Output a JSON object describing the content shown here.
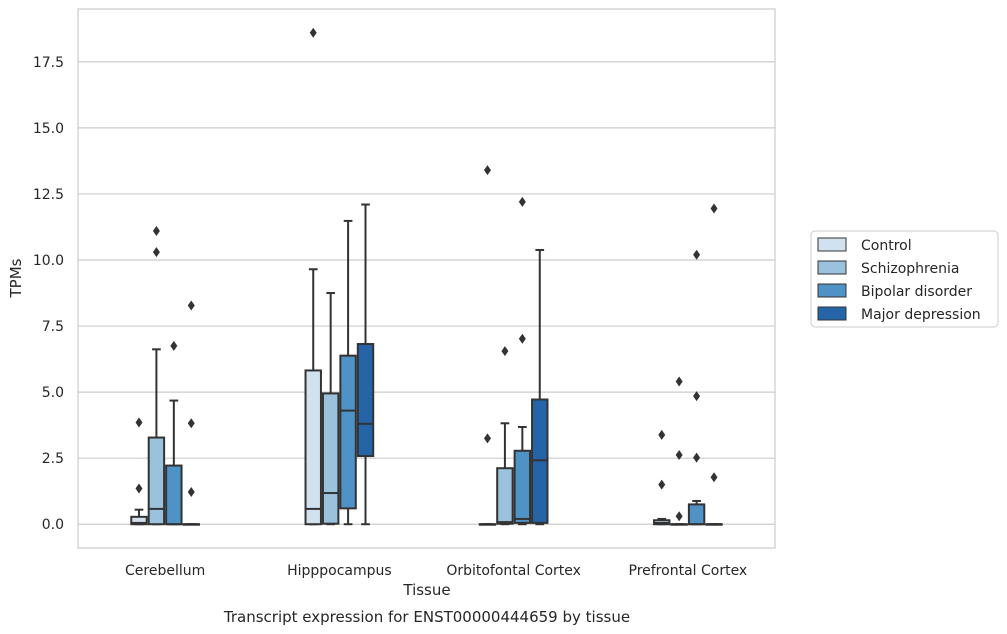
{
  "chart_data": {
    "type": "box",
    "title": "",
    "caption": "Transcript expression for ENST00000444659 by tissue",
    "xlabel": "Tissue",
    "ylabel": "TPMs",
    "ylim": [
      -0.9,
      19.5
    ],
    "yticks": [
      "0.0",
      "2.5",
      "5.0",
      "7.5",
      "10.0",
      "12.5",
      "15.0",
      "17.5"
    ],
    "grid": "horizontal",
    "legend_position": "right",
    "categories": [
      "Cerebellum",
      "Hipppocampus",
      "Orbitofontal Cortex",
      "Prefrontal Cortex"
    ],
    "series": [
      {
        "name": "Control",
        "color": "#d1e1f0",
        "boxes": [
          {
            "whislo": 0.0,
            "q1": 0.0,
            "med": 0.05,
            "q3": 0.28,
            "whishi": 0.55,
            "fliers": [
              1.35,
              3.85
            ]
          },
          {
            "whislo": 0.0,
            "q1": 0.0,
            "med": 0.58,
            "q3": 5.82,
            "whishi": 9.65,
            "fliers": [
              18.6
            ]
          },
          {
            "whislo": 0.0,
            "q1": 0.0,
            "med": 0.0,
            "q3": 0.0,
            "whishi": 0.0,
            "fliers": [
              3.25,
              13.4
            ]
          },
          {
            "whislo": 0.0,
            "q1": 0.0,
            "med": 0.05,
            "q3": 0.15,
            "whishi": 0.2,
            "fliers": [
              1.5,
              3.38
            ]
          }
        ]
      },
      {
        "name": "Schizophrenia",
        "color": "#9ac2dc",
        "boxes": [
          {
            "whislo": 0.0,
            "q1": 0.0,
            "med": 0.58,
            "q3": 3.28,
            "whishi": 6.62,
            "fliers": [
              10.3,
              11.1
            ]
          },
          {
            "whislo": 0.0,
            "q1": 0.02,
            "med": 1.18,
            "q3": 4.95,
            "whishi": 8.75,
            "fliers": []
          },
          {
            "whislo": 0.0,
            "q1": 0.02,
            "med": 0.08,
            "q3": 2.12,
            "whishi": 3.82,
            "fliers": [
              6.55
            ]
          },
          {
            "whislo": 0.0,
            "q1": 0.0,
            "med": 0.0,
            "q3": 0.0,
            "whishi": 0.0,
            "fliers": [
              5.4
            ]
          }
        ]
      },
      {
        "name": "Bipolar disorder",
        "color": "#4f92c5",
        "boxes": [
          {
            "whislo": 0.0,
            "q1": 0.0,
            "med": 0.0,
            "q3": 2.22,
            "whishi": 4.68,
            "fliers": [
              6.75
            ]
          },
          {
            "whislo": 0.0,
            "q1": 0.6,
            "med": 4.3,
            "q3": 6.38,
            "whishi": 11.48,
            "fliers": []
          },
          {
            "whislo": 0.0,
            "q1": 0.05,
            "med": 0.2,
            "q3": 2.78,
            "whishi": 3.68,
            "fliers": [
              7.02,
              12.2
            ]
          },
          {
            "whislo": 0.0,
            "q1": 0.0,
            "med": 0.0,
            "q3": 0.75,
            "whishi": 0.88,
            "fliers": [
              2.52,
              4.85,
              10.2
            ]
          }
        ]
      },
      {
        "name": "Major depression",
        "color": "#2565a7",
        "boxes": [
          {
            "whislo": 0.0,
            "q1": 0.0,
            "med": 0.0,
            "q3": 0.0,
            "whishi": 0.0,
            "fliers": [
              1.22,
              3.82,
              8.28
            ]
          },
          {
            "whislo": 0.0,
            "q1": 2.58,
            "med": 3.8,
            "q3": 6.82,
            "whishi": 12.1,
            "fliers": []
          },
          {
            "whislo": 0.0,
            "q1": 0.05,
            "med": 2.42,
            "q3": 4.72,
            "whishi": 10.38,
            "fliers": []
          },
          {
            "whislo": 0.0,
            "q1": 0.0,
            "med": 0.0,
            "q3": 0.0,
            "whishi": 0.0,
            "fliers": [
              1.78,
              11.95
            ]
          }
        ]
      }
    ],
    "extra_fliers": [
      {
        "category": 3,
        "series": 1,
        "values": [
          0.3
        ]
      },
      {
        "category": 3,
        "series": 1,
        "values": [
          2.62
        ]
      }
    ]
  }
}
